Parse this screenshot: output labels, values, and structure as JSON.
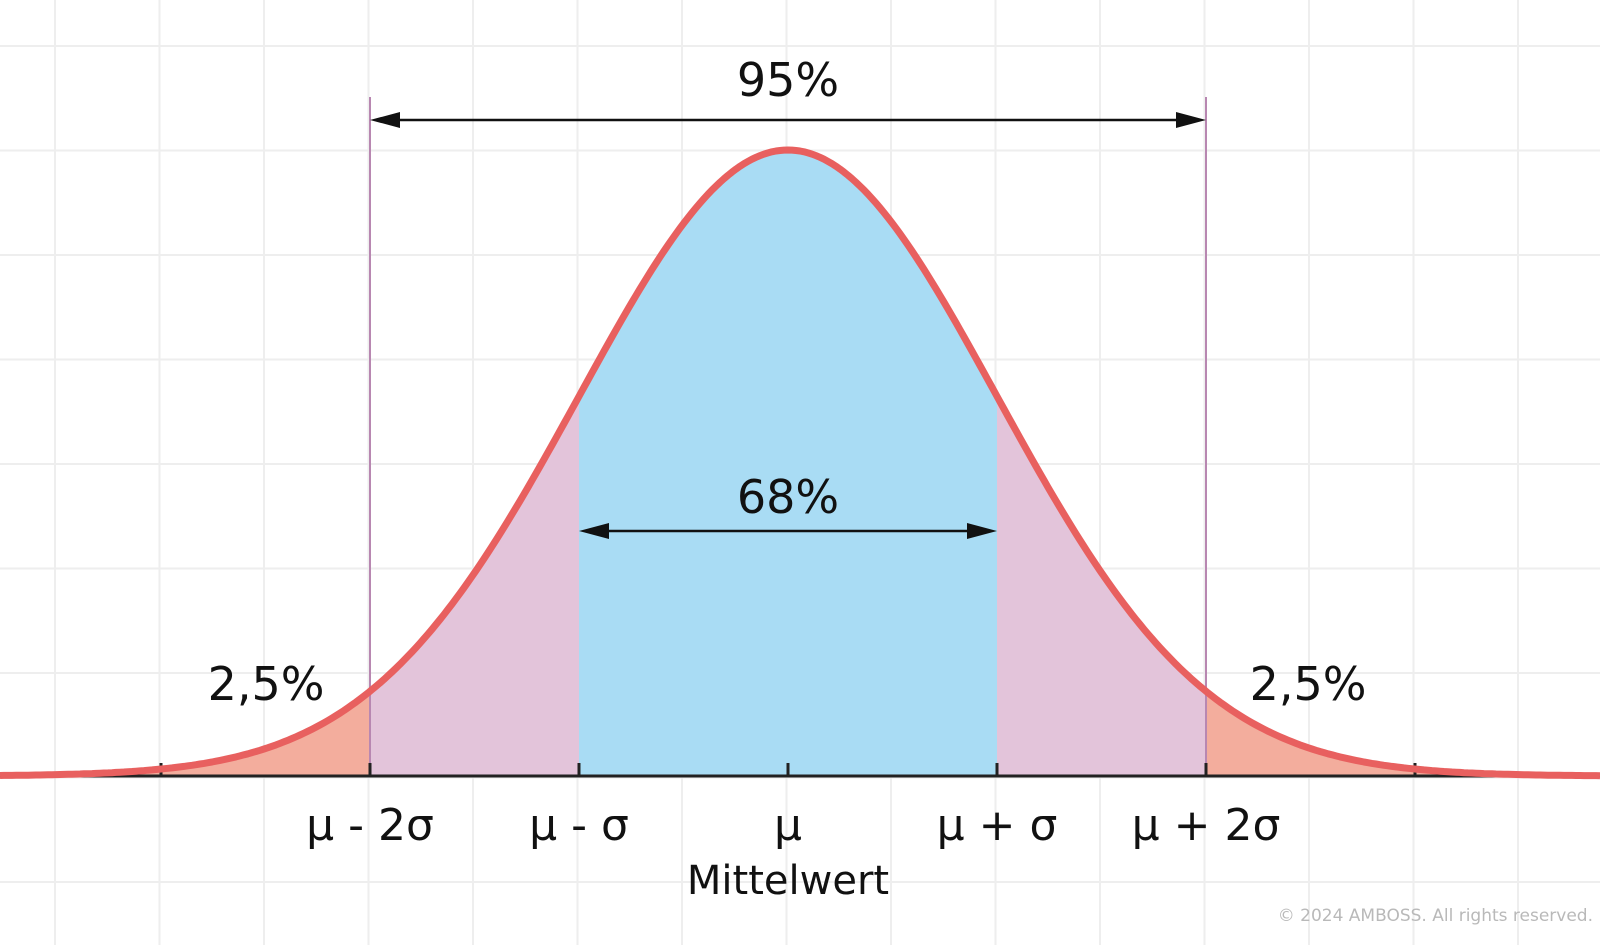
{
  "colors": {
    "curve": "#e8605f",
    "center_fill": "#a9dcf4",
    "sigma_band_fill": "#e3c4da",
    "tail_fill": "#f3ad9d",
    "grid": "#eeeeee",
    "boundary_line": "#b887b1",
    "axis": "#222222"
  },
  "labels": {
    "span_95": "95%",
    "span_68": "68%",
    "tail_left": "2,5%",
    "tail_right": "2,5%",
    "mean_caption": "Mittelwert",
    "copyright": "© 2024 AMBOSS. All rights reserved."
  },
  "axis_ticks": [
    {
      "sigma": -3,
      "label": ""
    },
    {
      "sigma": -2,
      "label": "μ - 2σ"
    },
    {
      "sigma": -1,
      "label": "μ - σ"
    },
    {
      "sigma": 0,
      "label": "μ"
    },
    {
      "sigma": 1,
      "label": "μ + σ"
    },
    {
      "sigma": 2,
      "label": "μ + 2σ"
    },
    {
      "sigma": 3,
      "label": ""
    }
  ],
  "regions": [
    {
      "from_sigma": -1,
      "to_sigma": 1,
      "share_percent": 68,
      "kind": "center"
    },
    {
      "from_sigma": -2,
      "to_sigma": 2,
      "share_percent": 95,
      "kind": "sigma_band"
    },
    {
      "from_sigma": -5,
      "to_sigma": -2,
      "share_percent": 2.5,
      "kind": "tail"
    },
    {
      "from_sigma": 2,
      "to_sigma": 5,
      "share_percent": 2.5,
      "kind": "tail"
    }
  ]
}
